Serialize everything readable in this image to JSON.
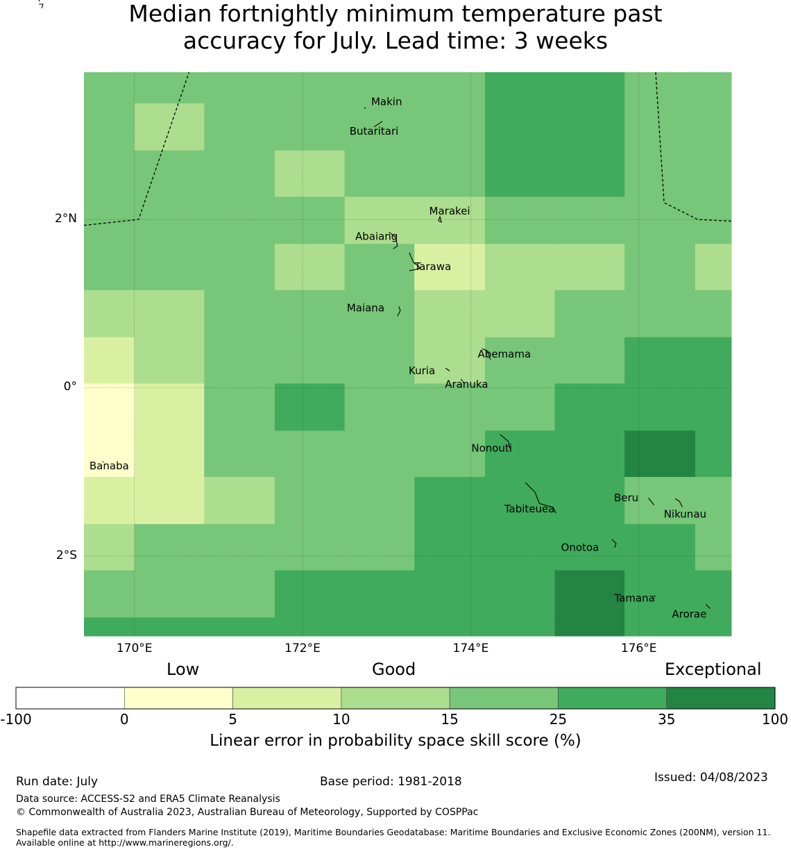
{
  "title": {
    "line1": "Median fortnightly minimum temperature past",
    "line2": "accuracy for July. Lead time: 3 weeks"
  },
  "map": {
    "extent": {
      "lon_min": 169.4,
      "lon_max": 177.1,
      "lat_min": -2.95,
      "lat_max": 3.75
    },
    "lat_ticks": [
      {
        "lat": 2,
        "label": "2°N"
      },
      {
        "lat": 0,
        "label": "0°"
      },
      {
        "lat": -2,
        "label": "2°S"
      }
    ],
    "lon_ticks": [
      {
        "lon": 170,
        "label": "170°E"
      },
      {
        "lon": 172,
        "label": "172°E"
      },
      {
        "lon": 174,
        "label": "174°E"
      },
      {
        "lon": 176,
        "label": "176°E"
      }
    ],
    "grid": true,
    "grid_lon_edges": [
      169.4,
      170.0,
      170.83,
      171.67,
      172.5,
      173.33,
      174.17,
      175.0,
      175.83,
      176.67,
      177.1
    ],
    "grid_lat_edges": [
      3.75,
      3.38,
      2.82,
      2.27,
      1.71,
      1.16,
      0.6,
      0.05,
      -0.51,
      -1.06,
      -1.62,
      -2.17,
      -2.73,
      -2.95
    ],
    "skill_classes": [
      [
        4,
        4,
        4,
        4,
        4,
        4,
        5,
        5,
        4,
        4
      ],
      [
        4,
        3,
        4,
        4,
        4,
        4,
        5,
        5,
        4,
        4
      ],
      [
        4,
        4,
        4,
        3,
        4,
        4,
        5,
        5,
        4,
        4
      ],
      [
        4,
        4,
        4,
        4,
        3,
        3,
        4,
        4,
        4,
        4
      ],
      [
        4,
        4,
        4,
        3,
        4,
        2,
        3,
        3,
        4,
        3
      ],
      [
        3,
        3,
        4,
        4,
        4,
        3,
        3,
        4,
        4,
        4
      ],
      [
        2,
        3,
        4,
        4,
        4,
        3,
        4,
        4,
        5,
        5
      ],
      [
        1,
        2,
        4,
        5,
        4,
        4,
        4,
        5,
        5,
        5
      ],
      [
        1,
        2,
        4,
        4,
        4,
        4,
        5,
        5,
        6,
        5
      ],
      [
        2,
        2,
        3,
        4,
        4,
        5,
        5,
        5,
        4,
        4
      ],
      [
        3,
        4,
        4,
        4,
        4,
        5,
        5,
        5,
        5,
        4
      ],
      [
        4,
        4,
        4,
        5,
        5,
        5,
        5,
        6,
        5,
        5
      ],
      [
        5,
        5,
        5,
        5,
        5,
        5,
        5,
        6,
        5,
        5
      ]
    ],
    "boundary_line": [
      [
        169.4,
        1.93
      ],
      [
        170.05,
        2.0
      ],
      [
        170.65,
        3.75
      ]
    ],
    "boundary_line_2": [
      [
        176.2,
        3.75
      ],
      [
        176.3,
        2.2
      ],
      [
        176.7,
        2.0
      ],
      [
        177.1,
        1.98
      ]
    ],
    "islands": [
      {
        "name": "Makin",
        "lon": 173.0,
        "lat": 3.4
      },
      {
        "name": "Butaritari",
        "lon": 172.85,
        "lat": 3.05
      },
      {
        "name": "Marakei",
        "lon": 173.75,
        "lat": 2.1
      },
      {
        "name": "Abaiang",
        "lon": 172.88,
        "lat": 1.8
      },
      {
        "name": "Tarawa",
        "lon": 173.55,
        "lat": 1.44
      },
      {
        "name": "Maiana",
        "lon": 172.75,
        "lat": 0.95
      },
      {
        "name": "Abemama",
        "lon": 174.4,
        "lat": 0.4
      },
      {
        "name": "Kuria",
        "lon": 173.42,
        "lat": 0.2
      },
      {
        "name": "Aranuka",
        "lon": 173.95,
        "lat": 0.04
      },
      {
        "name": "Banaba",
        "lon": 169.7,
        "lat": -0.93
      },
      {
        "name": "Nonouti",
        "lon": 174.25,
        "lat": -0.72
      },
      {
        "name": "Beru",
        "lon": 175.85,
        "lat": -1.31
      },
      {
        "name": "Tabiteuea",
        "lon": 174.7,
        "lat": -1.44
      },
      {
        "name": "Nikunau",
        "lon": 176.55,
        "lat": -1.5
      },
      {
        "name": "Onotoa",
        "lon": 175.3,
        "lat": -1.9
      },
      {
        "name": "Tamana",
        "lon": 175.95,
        "lat": -2.5
      },
      {
        "name": "Arorae",
        "lon": 176.6,
        "lat": -2.69
      }
    ]
  },
  "colorbar": {
    "category_low": "Low",
    "category_good": "Good",
    "category_exceptional": "Exceptional",
    "bounds": [
      "-100",
      "0",
      "5",
      "10",
      "15",
      "25",
      "35",
      "100"
    ],
    "colors": [
      "#ffffff",
      "#ffffcc",
      "#d9f0a3",
      "#addd8e",
      "#78c679",
      "#41ab5d",
      "#238443"
    ],
    "label": "Linear error in probability space skill score (%)"
  },
  "footer": {
    "run_date": "Run date: July",
    "base_period": "Base period: 1981-2018",
    "issued": "Issued: 04/08/2023",
    "data_source": "Data source: ACCESS-S2 and ERA5 Climate Reanalysis",
    "copyright": "© Commonwealth of Australia 2023, Australian Bureau of Meteorology, Supported by COSPPac",
    "shapefile_note": "Shapefile data extracted from Flanders Marine Institute (2019), Maritime Boundaries Geodatabase: Maritime Boundaries and Exclusive Economic Zones (200NM), version 11. Available online at http://www.marineregions.org/."
  }
}
